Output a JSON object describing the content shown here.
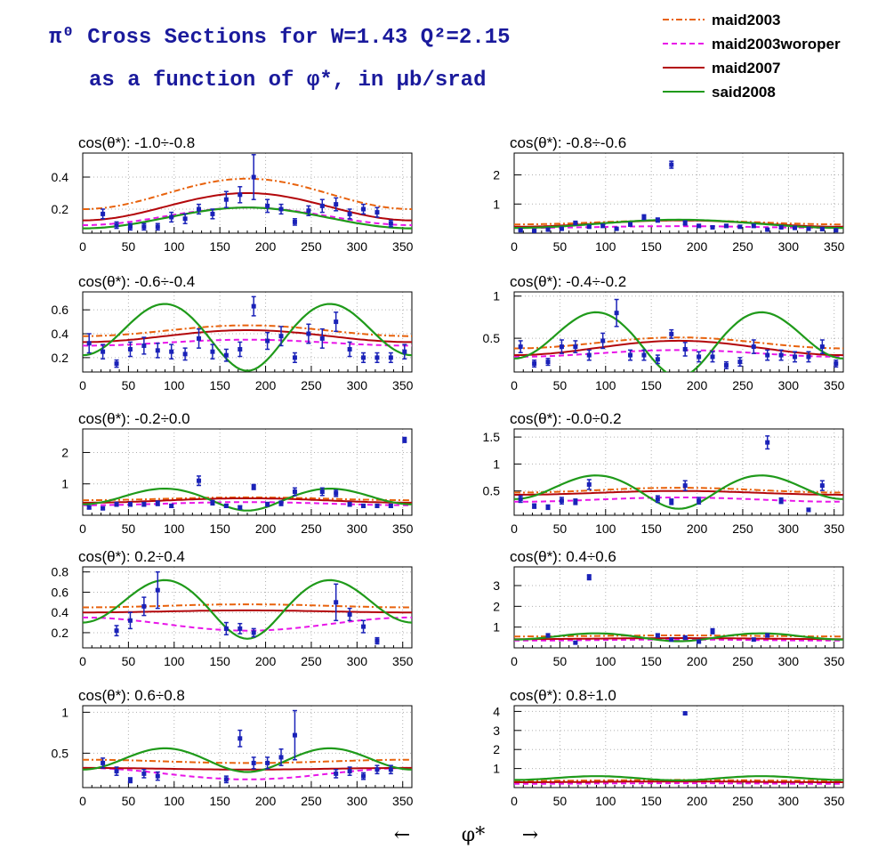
{
  "header": {
    "title_line1": "π⁰ Cross Sections for W=1.43  Q²=2.15",
    "title_line2": "as a function of φ*, in μb/srad"
  },
  "colors": {
    "maid2003": "#e8620c",
    "maid2003woroper": "#e815e8",
    "maid2007": "#b3070b",
    "said2008": "#1f9a1a",
    "data": "#1a22b8",
    "frame": "#000000",
    "grid": "#b0b0b0"
  },
  "legend": {
    "items": [
      {
        "key": "maid2003",
        "label": "maid2003",
        "style": "dashdot"
      },
      {
        "key": "maid2003woroper",
        "label": "maid2003woroper",
        "style": "dashed"
      },
      {
        "key": "maid2007",
        "label": "maid2007",
        "style": "solid"
      },
      {
        "key": "said2008",
        "label": "said2008",
        "style": "solid"
      }
    ]
  },
  "xaxis": {
    "label_left": "←",
    "label": "φ*",
    "label_right": "→"
  },
  "chart_data": [
    {
      "type": "scatter",
      "title": "cos(θ*): -1.0÷-0.8",
      "xlim": [
        0,
        360
      ],
      "ylim": [
        0.05,
        0.55
      ],
      "yticks": [
        0.2,
        0.4
      ],
      "xticks": [
        0,
        50,
        100,
        150,
        200,
        250,
        300,
        350
      ],
      "x": [
        22,
        37,
        52,
        67,
        82,
        97,
        112,
        127,
        142,
        157,
        172,
        187,
        202,
        217,
        232,
        247,
        262,
        277,
        292,
        307,
        322,
        337
      ],
      "y": [
        0.17,
        0.1,
        0.09,
        0.09,
        0.09,
        0.15,
        0.14,
        0.2,
        0.17,
        0.26,
        0.29,
        0.4,
        0.22,
        0.2,
        0.12,
        0.19,
        0.22,
        0.23,
        0.17,
        0.2,
        0.18,
        0.11
      ],
      "err": [
        0.03,
        0.02,
        0.02,
        0.02,
        0.02,
        0.03,
        0.03,
        0.03,
        0.03,
        0.05,
        0.05,
        0.14,
        0.04,
        0.03,
        0.02,
        0.03,
        0.04,
        0.04,
        0.03,
        0.03,
        0.03,
        0.02
      ],
      "models": {
        "maid2003": {
          "base": 0.2,
          "amp": 0.19,
          "shape": "bump"
        },
        "maid2003woroper": {
          "base": 0.1,
          "amp": 0.11,
          "shape": "bump"
        },
        "maid2007": {
          "base": 0.13,
          "amp": 0.17,
          "shape": "bump"
        },
        "said2008": {
          "base": 0.08,
          "amp": 0.13,
          "shape": "bump"
        }
      }
    },
    {
      "type": "scatter",
      "title": "cos(θ*): -0.8÷-0.6",
      "xlim": [
        0,
        360
      ],
      "ylim": [
        0.0,
        2.75
      ],
      "yticks": [
        1,
        2
      ],
      "xticks": [
        0,
        50,
        100,
        150,
        200,
        250,
        300,
        350
      ],
      "x": [
        7,
        22,
        37,
        52,
        67,
        82,
        97,
        112,
        127,
        142,
        157,
        172,
        187,
        202,
        217,
        232,
        247,
        262,
        277,
        292,
        307,
        322,
        337,
        352
      ],
      "y": [
        0.1,
        0.08,
        0.12,
        0.15,
        0.35,
        0.22,
        0.25,
        0.15,
        0.3,
        0.55,
        0.45,
        2.35,
        0.35,
        0.25,
        0.2,
        0.25,
        0.22,
        0.25,
        0.12,
        0.2,
        0.18,
        0.15,
        0.14,
        0.1
      ],
      "err": [
        0.03,
        0.03,
        0.03,
        0.03,
        0.06,
        0.04,
        0.05,
        0.03,
        0.06,
        0.08,
        0.07,
        0.12,
        0.07,
        0.05,
        0.04,
        0.05,
        0.04,
        0.05,
        0.03,
        0.04,
        0.04,
        0.03,
        0.03,
        0.03
      ],
      "models": {
        "maid2003": {
          "base": 0.3,
          "amp": 0.14,
          "shape": "bump"
        },
        "maid2003woroper": {
          "base": 0.18,
          "amp": 0.06,
          "shape": "bump"
        },
        "maid2007": {
          "base": 0.22,
          "amp": 0.22,
          "shape": "bump"
        },
        "said2008": {
          "base": 0.18,
          "amp": 0.28,
          "shape": "bump"
        }
      }
    },
    {
      "type": "scatter",
      "title": "cos(θ*): -0.6÷-0.4",
      "xlim": [
        0,
        360
      ],
      "ylim": [
        0.08,
        0.75
      ],
      "yticks": [
        0.2,
        0.4,
        0.6
      ],
      "xticks": [
        0,
        50,
        100,
        150,
        200,
        250,
        300,
        350
      ],
      "x": [
        7,
        22,
        37,
        52,
        67,
        82,
        97,
        112,
        127,
        142,
        157,
        172,
        187,
        202,
        217,
        232,
        247,
        262,
        277,
        292,
        307,
        322,
        337,
        352
      ],
      "y": [
        0.32,
        0.25,
        0.15,
        0.27,
        0.3,
        0.26,
        0.25,
        0.23,
        0.36,
        0.25,
        0.22,
        0.27,
        0.63,
        0.34,
        0.38,
        0.2,
        0.4,
        0.36,
        0.5,
        0.27,
        0.2,
        0.2,
        0.2,
        0.25
      ],
      "err": [
        0.08,
        0.06,
        0.03,
        0.06,
        0.07,
        0.06,
        0.06,
        0.05,
        0.08,
        0.06,
        0.05,
        0.06,
        0.08,
        0.07,
        0.08,
        0.04,
        0.08,
        0.08,
        0.08,
        0.06,
        0.04,
        0.04,
        0.04,
        0.06
      ],
      "models": {
        "maid2003": {
          "base": 0.38,
          "amp": 0.09,
          "shape": "bump"
        },
        "maid2003woroper": {
          "base": 0.3,
          "amp": 0.05,
          "shape": "bump"
        },
        "maid2007": {
          "base": 0.33,
          "amp": 0.1,
          "shape": "bump"
        },
        "said2008": {
          "base": 0.22,
          "amp": 0.43,
          "dip": 0.13,
          "shape": "double"
        }
      }
    },
    {
      "type": "scatter",
      "title": "cos(θ*): -0.4÷-0.2",
      "xlim": [
        0,
        360
      ],
      "ylim": [
        0.1,
        1.05
      ],
      "yticks": [
        0.5,
        1
      ],
      "xticks": [
        0,
        50,
        100,
        150,
        200,
        250,
        300,
        350
      ],
      "x": [
        7,
        22,
        37,
        52,
        67,
        82,
        97,
        112,
        127,
        142,
        157,
        172,
        187,
        202,
        217,
        232,
        247,
        262,
        277,
        292,
        307,
        322,
        337,
        352
      ],
      "y": [
        0.4,
        0.2,
        0.22,
        0.4,
        0.4,
        0.3,
        0.47,
        0.8,
        0.3,
        0.3,
        0.25,
        0.55,
        0.37,
        0.28,
        0.28,
        0.18,
        0.22,
        0.4,
        0.3,
        0.3,
        0.28,
        0.28,
        0.4,
        0.2
      ],
      "err": [
        0.07,
        0.04,
        0.04,
        0.08,
        0.07,
        0.06,
        0.09,
        0.16,
        0.06,
        0.06,
        0.05,
        0.05,
        0.08,
        0.06,
        0.06,
        0.04,
        0.05,
        0.08,
        0.06,
        0.06,
        0.06,
        0.06,
        0.08,
        0.04
      ],
      "models": {
        "maid2003": {
          "base": 0.38,
          "amp": 0.13,
          "shape": "bump"
        },
        "maid2003woroper": {
          "base": 0.28,
          "amp": 0.08,
          "shape": "bump"
        },
        "maid2007": {
          "base": 0.3,
          "amp": 0.17,
          "shape": "bump"
        },
        "said2008": {
          "base": 0.26,
          "amp": 0.55,
          "dip": 0.22,
          "shape": "double"
        }
      }
    },
    {
      "type": "scatter",
      "title": "cos(θ*): -0.2÷0.0",
      "xlim": [
        0,
        360
      ],
      "ylim": [
        0.0,
        2.75
      ],
      "yticks": [
        1,
        2
      ],
      "xticks": [
        0,
        50,
        100,
        150,
        200,
        250,
        300,
        350
      ],
      "x": [
        7,
        22,
        37,
        52,
        67,
        82,
        97,
        127,
        142,
        157,
        172,
        187,
        202,
        217,
        232,
        262,
        277,
        292,
        307,
        322,
        337,
        352
      ],
      "y": [
        0.25,
        0.22,
        0.35,
        0.35,
        0.35,
        0.38,
        0.3,
        1.1,
        0.4,
        0.3,
        0.25,
        0.9,
        0.35,
        0.38,
        0.75,
        0.75,
        0.7,
        0.35,
        0.3,
        0.3,
        0.3,
        2.4
      ],
      "err": [
        0.05,
        0.04,
        0.06,
        0.06,
        0.06,
        0.07,
        0.05,
        0.15,
        0.07,
        0.05,
        0.05,
        0.08,
        0.06,
        0.07,
        0.12,
        0.12,
        0.1,
        0.06,
        0.05,
        0.05,
        0.05,
        0.08
      ],
      "models": {
        "maid2003": {
          "base": 0.48,
          "amp": 0.09,
          "shape": "bump"
        },
        "maid2003woroper": {
          "base": 0.32,
          "amp": 0.1,
          "shape": "bump"
        },
        "maid2007": {
          "base": 0.4,
          "amp": 0.14,
          "shape": "bump"
        },
        "said2008": {
          "base": 0.35,
          "amp": 0.5,
          "dip": 0.2,
          "shape": "double"
        }
      }
    },
    {
      "type": "scatter",
      "title": "cos(θ*): -0.0÷0.2",
      "xlim": [
        0,
        360
      ],
      "ylim": [
        0.05,
        1.65
      ],
      "yticks": [
        0.5,
        1,
        1.5
      ],
      "xticks": [
        0,
        50,
        100,
        150,
        200,
        250,
        300,
        350
      ],
      "x": [
        7,
        22,
        37,
        52,
        67,
        82,
        157,
        172,
        187,
        202,
        277,
        292,
        322,
        337
      ],
      "y": [
        0.35,
        0.22,
        0.2,
        0.32,
        0.3,
        0.62,
        0.35,
        0.3,
        0.6,
        0.32,
        1.4,
        0.32,
        0.15,
        0.6
      ],
      "err": [
        0.06,
        0.04,
        0.04,
        0.06,
        0.05,
        0.09,
        0.06,
        0.05,
        0.09,
        0.06,
        0.12,
        0.05,
        0.03,
        0.09
      ],
      "models": {
        "maid2003": {
          "base": 0.47,
          "amp": 0.09,
          "shape": "bump"
        },
        "maid2003woroper": {
          "base": 0.3,
          "amp": 0.08,
          "shape": "bump"
        },
        "maid2007": {
          "base": 0.43,
          "amp": 0.07,
          "shape": "bump"
        },
        "said2008": {
          "base": 0.35,
          "amp": 0.44,
          "dip": 0.18,
          "shape": "double"
        }
      }
    },
    {
      "type": "scatter",
      "title": "cos(θ*): 0.2÷0.4",
      "xlim": [
        0,
        360
      ],
      "ylim": [
        0.05,
        0.85
      ],
      "yticks": [
        0.2,
        0.4,
        0.6,
        0.8
      ],
      "xticks": [
        0,
        50,
        100,
        150,
        200,
        250,
        300,
        350
      ],
      "x": [
        37,
        52,
        67,
        82,
        157,
        172,
        187,
        277,
        292,
        307,
        322
      ],
      "y": [
        0.22,
        0.32,
        0.46,
        0.62,
        0.24,
        0.24,
        0.2,
        0.5,
        0.38,
        0.26,
        0.12
      ],
      "err": [
        0.05,
        0.08,
        0.09,
        0.18,
        0.06,
        0.05,
        0.04,
        0.18,
        0.06,
        0.06,
        0.03
      ],
      "models": {
        "maid2003": {
          "base": 0.45,
          "amp": 0.03,
          "shape": "bump"
        },
        "maid2003woroper": {
          "base": 0.35,
          "amp": 0.13,
          "shape": "dipcurve"
        },
        "maid2007": {
          "base": 0.4,
          "amp": 0.02,
          "shape": "bump"
        },
        "said2008": {
          "base": 0.3,
          "amp": 0.42,
          "dip": 0.16,
          "shape": "double"
        }
      }
    },
    {
      "type": "scatter",
      "title": "cos(θ*): 0.4÷0.6",
      "xlim": [
        0,
        360
      ],
      "ylim": [
        0.0,
        3.9
      ],
      "yticks": [
        1,
        2,
        3
      ],
      "xticks": [
        0,
        50,
        100,
        150,
        200,
        250,
        300,
        350
      ],
      "x": [
        37,
        67,
        82,
        157,
        172,
        187,
        202,
        217,
        262,
        277
      ],
      "y": [
        0.6,
        0.25,
        3.4,
        0.6,
        0.4,
        0.5,
        0.3,
        0.8,
        0.4,
        0.6
      ],
      "err": [
        0.08,
        0.05,
        0.12,
        0.08,
        0.06,
        0.07,
        0.05,
        0.12,
        0.06,
        0.08
      ],
      "models": {
        "maid2003": {
          "base": 0.55,
          "amp": 0.05,
          "shape": "bump"
        },
        "maid2003woroper": {
          "base": 0.35,
          "amp": 0.05,
          "shape": "bump"
        },
        "maid2007": {
          "base": 0.42,
          "amp": 0.05,
          "shape": "bump"
        },
        "said2008": {
          "base": 0.4,
          "amp": 0.3,
          "dip": 0.08,
          "shape": "double"
        }
      }
    },
    {
      "type": "scatter",
      "title": "cos(θ*): 0.6÷0.8",
      "xlim": [
        0,
        360
      ],
      "ylim": [
        0.08,
        1.08
      ],
      "yticks": [
        0.5,
        1
      ],
      "xticks": [
        0,
        50,
        100,
        150,
        200,
        250,
        300,
        350
      ],
      "x": [
        22,
        37,
        52,
        67,
        82,
        157,
        172,
        187,
        202,
        217,
        232,
        277,
        292,
        307,
        322,
        337
      ],
      "y": [
        0.38,
        0.28,
        0.17,
        0.25,
        0.22,
        0.18,
        0.68,
        0.38,
        0.38,
        0.45,
        0.72,
        0.25,
        0.28,
        0.22,
        0.3,
        0.3
      ],
      "err": [
        0.06,
        0.05,
        0.03,
        0.05,
        0.05,
        0.04,
        0.1,
        0.07,
        0.07,
        0.1,
        0.3,
        0.05,
        0.05,
        0.04,
        0.05,
        0.05
      ],
      "models": {
        "maid2003": {
          "base": 0.42,
          "amp": 0.04,
          "shape": "flatdip"
        },
        "maid2003woroper": {
          "base": 0.32,
          "amp": 0.14,
          "shape": "dipcurve"
        },
        "maid2007": {
          "base": 0.32,
          "amp": 0.02,
          "shape": "flatdip"
        },
        "said2008": {
          "base": 0.3,
          "amp": 0.26,
          "dip": 0.03,
          "shape": "double"
        }
      }
    },
    {
      "type": "scatter",
      "title": "cos(θ*): 0.8÷1.0",
      "xlim": [
        0,
        360
      ],
      "ylim": [
        0.0,
        4.3
      ],
      "yticks": [
        1,
        2,
        3,
        4
      ],
      "xticks": [
        0,
        50,
        100,
        150,
        200,
        250,
        300,
        350
      ],
      "x": [
        187
      ],
      "y": [
        3.9
      ],
      "err": [
        0.06
      ],
      "models": {
        "maid2003": {
          "base": 0.35,
          "amp": 0.05,
          "shape": "bump"
        },
        "maid2003woroper": {
          "base": 0.2,
          "amp": 0.03,
          "shape": "bump"
        },
        "maid2007": {
          "base": 0.28,
          "amp": 0.04,
          "shape": "bump"
        },
        "said2008": {
          "base": 0.4,
          "amp": 0.2,
          "dip": 0.02,
          "shape": "double"
        }
      }
    }
  ]
}
